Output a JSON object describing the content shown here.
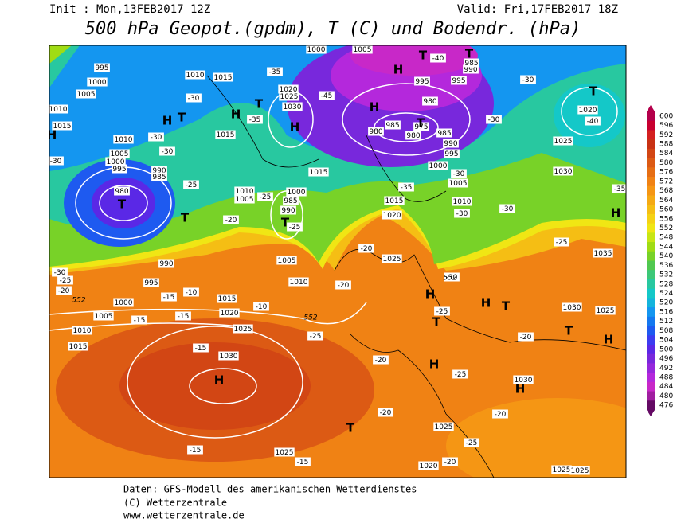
{
  "header": {
    "init": "Init : Mon,13FEB2017 12Z",
    "valid": "Valid: Fri,17FEB2017 18Z",
    "title": "500 hPa Geopot.(gpdm), T (C) und Bodendr. (hPa)"
  },
  "colorbar": {
    "levels": [
      600,
      596,
      592,
      588,
      584,
      580,
      576,
      572,
      568,
      564,
      560,
      556,
      552,
      548,
      544,
      540,
      536,
      532,
      528,
      524,
      520,
      516,
      512,
      508,
      504,
      500,
      496,
      492,
      488,
      484,
      480,
      476
    ],
    "colors": [
      "#b4004b",
      "#c80030",
      "#d42020",
      "#c83214",
      "#d24614",
      "#dc5a14",
      "#e66e14",
      "#f08214",
      "#f59614",
      "#f5aa14",
      "#f5be14",
      "#f5d214",
      "#f0e614",
      "#c8e614",
      "#a0dc14",
      "#78d228",
      "#50c850",
      "#3cc878",
      "#28c8a0",
      "#14c8c8",
      "#14b4dc",
      "#1496f0",
      "#1478f0",
      "#1e5af0",
      "#3c3cf0",
      "#5a28e6",
      "#7828dc",
      "#9628dc",
      "#b428dc",
      "#c828c8",
      "#a01ea0",
      "#640a64"
    ]
  },
  "map": {
    "labels": [
      "995",
      "1000",
      "1005",
      "1010",
      "1015",
      "1010",
      "1015",
      "1020",
      "1025",
      "1030",
      "1015",
      "1010",
      "1005",
      "1000",
      "985",
      "990",
      "990",
      "995",
      "1000",
      "1005",
      "1010",
      "1015",
      "1015",
      "1020",
      "1025",
      "1030",
      "1005",
      "1010",
      "1025",
      "1020",
      "1015",
      "1015",
      "980",
      "990",
      "985",
      "995",
      "1000",
      "1005",
      "1010",
      "985",
      "980",
      "975",
      "980",
      "985",
      "990",
      "995",
      "1000",
      "980",
      "995",
      "995",
      "990",
      "985",
      "1005",
      "1000",
      "1020",
      "1025",
      "1030",
      "1035",
      "1030",
      "1025",
      "1030",
      "1025",
      "1020",
      "1025",
      "1025",
      "1025",
      "1010",
      "1005",
      "-40",
      "-45",
      "-35",
      "-30",
      "-35",
      "-30",
      "-30",
      "-25",
      "-25",
      "-20",
      "-25",
      "-30",
      "-25",
      "-20",
      "-20",
      "-20",
      "-25",
      "-15",
      "-15",
      "-15",
      "-10",
      "-15",
      "-20",
      "-20",
      "-25",
      "-20",
      "-20",
      "-25",
      "-30",
      "-30",
      "-35",
      "-30",
      "-30",
      "-30",
      "-40",
      "-35",
      "-15",
      "-15",
      "-20",
      "-25",
      "-30",
      "-25",
      "-30",
      "-10"
    ],
    "centers": [
      "H",
      "T",
      "H",
      "T",
      "H",
      "H",
      "T",
      "T",
      "H",
      "T",
      "T",
      "H",
      "T",
      "T",
      "T",
      "H",
      "T",
      "H",
      "T",
      "H",
      "T",
      "H",
      "H",
      "H",
      "H",
      "T"
    ],
    "contour_labels": [
      "552",
      "552",
      "552"
    ]
  },
  "footer": [
    "Daten: GFS-Modell des amerikanischen Wetterdienstes",
    "(C) Wetterzentrale",
    "www.wetterzentrale.de"
  ]
}
